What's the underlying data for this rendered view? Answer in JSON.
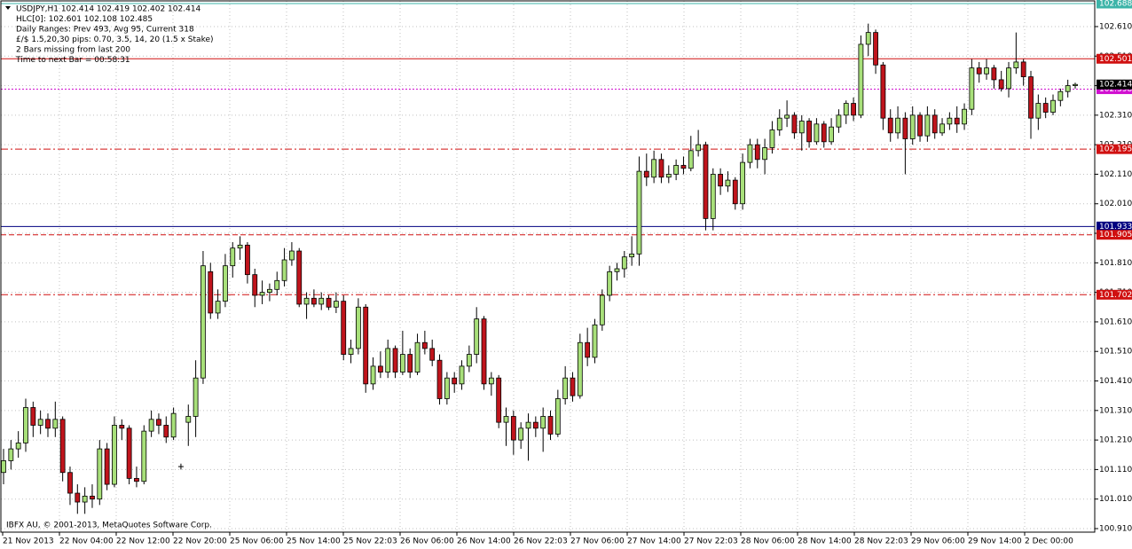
{
  "chart_data": {
    "type": "candlestick",
    "annotations": [
      "USDJPY,H1  102.414 102.419 102.402 102.414",
      "HLC[0]: 102.601 102.108 102.485",
      "Daily Ranges:  Prev 493,  Avg 95,  Current 318",
      "£/$ 1.5,20,30 pips: 0.70, 3.5, 14, 20 (1.5 x Stake)",
      "2 Bars missing from last 200",
      "Time to next Bar = 00:58:31"
    ],
    "footer": "IBFX AU, © 2001-2013, MetaQuotes Software Corp.",
    "x_labels": [
      "21 Nov 2013",
      "22 Nov 04:00",
      "22 Nov 12:00",
      "22 Nov 20:00",
      "25 Nov 06:00",
      "25 Nov 14:00",
      "25 Nov 22:03",
      "26 Nov 06:00",
      "26 Nov 14:00",
      "26 Nov 22:03",
      "27 Nov 06:00",
      "27 Nov 14:00",
      "27 Nov 22:03",
      "28 Nov 06:00",
      "28 Nov 14:00",
      "28 Nov 22:03",
      "29 Nov 06:00",
      "29 Nov 14:00",
      "2 Dec 00:00"
    ],
    "ylim": [
      100.898,
      102.697
    ],
    "yticks": [
      {
        "value": 102.61,
        "label": "102.610"
      },
      {
        "value": 102.51,
        "label": "102.510"
      },
      {
        "value": 102.41,
        "label": "102.410"
      },
      {
        "value": 102.31,
        "label": "102.310"
      },
      {
        "value": 102.21,
        "label": "102.210"
      },
      {
        "value": 102.11,
        "label": "102.110"
      },
      {
        "value": 102.01,
        "label": "102.010"
      },
      {
        "value": 101.91,
        "label": "101.910"
      },
      {
        "value": 101.81,
        "label": "101.810"
      },
      {
        "value": 101.71,
        "label": "101.710"
      },
      {
        "value": 101.61,
        "label": "101.610"
      },
      {
        "value": 101.51,
        "label": "101.510"
      },
      {
        "value": 101.41,
        "label": "101.410"
      },
      {
        "value": 101.31,
        "label": "101.310"
      },
      {
        "value": 101.21,
        "label": "101.210"
      },
      {
        "value": 101.11,
        "label": "101.110"
      },
      {
        "value": 101.01,
        "label": "101.010"
      },
      {
        "value": 100.91,
        "label": "100.910"
      }
    ],
    "grid": true,
    "up_color": "#a8e07a",
    "down_color": "#c0141c",
    "levels": [
      {
        "value": 102.688,
        "color": "#3cb4a8",
        "style": "solid"
      },
      {
        "value": 102.501,
        "color": "#d01010",
        "style": "solid"
      },
      {
        "value": 102.398,
        "color": "#d010d0",
        "style": "dotted"
      },
      {
        "value": 102.414,
        "color": "#000000",
        "style": "none"
      },
      {
        "value": 102.195,
        "color": "#d01010",
        "style": "dashdot"
      },
      {
        "value": 101.933,
        "color": "#000080",
        "style": "solid"
      },
      {
        "value": 101.905,
        "color": "#d01010",
        "style": "dashed"
      },
      {
        "value": 101.702,
        "color": "#d01010",
        "style": "dashdot"
      }
    ],
    "candles": [
      [
        101.1,
        101.18,
        101.06,
        101.14
      ],
      [
        101.14,
        101.21,
        101.11,
        101.18
      ],
      [
        101.18,
        101.24,
        101.15,
        101.2
      ],
      [
        101.2,
        101.35,
        101.17,
        101.32
      ],
      [
        101.32,
        101.34,
        101.22,
        101.26
      ],
      [
        101.26,
        101.31,
        101.23,
        101.28
      ],
      [
        101.28,
        101.3,
        101.22,
        101.25
      ],
      [
        101.25,
        101.34,
        101.22,
        101.28
      ],
      [
        101.28,
        101.29,
        101.07,
        101.1
      ],
      [
        101.1,
        101.12,
        100.99,
        101.03
      ],
      [
        101.03,
        101.06,
        100.96,
        101.0
      ],
      [
        101.0,
        101.05,
        100.96,
        101.02
      ],
      [
        101.02,
        101.06,
        100.98,
        101.01
      ],
      [
        101.01,
        101.21,
        100.99,
        101.18
      ],
      [
        101.18,
        101.2,
        101.04,
        101.06
      ],
      [
        101.06,
        101.29,
        101.05,
        101.26
      ],
      [
        101.26,
        101.28,
        101.21,
        101.25
      ],
      [
        101.25,
        101.26,
        101.06,
        101.08
      ],
      [
        101.08,
        101.12,
        101.05,
        101.07
      ],
      [
        101.07,
        101.26,
        101.06,
        101.24
      ],
      [
        101.24,
        101.31,
        101.22,
        101.28
      ],
      [
        101.28,
        101.3,
        101.23,
        101.26
      ],
      [
        101.26,
        101.29,
        101.2,
        101.22
      ],
      [
        101.22,
        101.32,
        101.21,
        101.3
      ],
      [
        101.12,
        101.13,
        101.11,
        101.12
      ],
      [
        101.27,
        101.33,
        101.19,
        101.29
      ],
      [
        101.29,
        101.48,
        101.22,
        101.42
      ],
      [
        101.42,
        101.85,
        101.4,
        101.8
      ],
      [
        101.78,
        101.81,
        101.62,
        101.64
      ],
      [
        101.64,
        101.72,
        101.62,
        101.68
      ],
      [
        101.68,
        101.84,
        101.66,
        101.8
      ],
      [
        101.8,
        101.88,
        101.76,
        101.86
      ],
      [
        101.86,
        101.9,
        101.82,
        101.87
      ],
      [
        101.87,
        101.88,
        101.74,
        101.77
      ],
      [
        101.77,
        101.79,
        101.66,
        101.7
      ],
      [
        101.7,
        101.75,
        101.67,
        101.71
      ],
      [
        101.71,
        101.74,
        101.68,
        101.72
      ],
      [
        101.72,
        101.78,
        101.7,
        101.75
      ],
      [
        101.75,
        101.86,
        101.73,
        101.82
      ],
      [
        101.82,
        101.88,
        101.8,
        101.85
      ],
      [
        101.85,
        101.86,
        101.66,
        101.67
      ],
      [
        101.67,
        101.71,
        101.62,
        101.69
      ],
      [
        101.69,
        101.72,
        101.66,
        101.67
      ],
      [
        101.67,
        101.71,
        101.65,
        101.69
      ],
      [
        101.69,
        101.7,
        101.65,
        101.66
      ],
      [
        101.66,
        101.71,
        101.64,
        101.68
      ],
      [
        101.68,
        101.7,
        101.48,
        101.5
      ],
      [
        101.5,
        101.55,
        101.47,
        101.52
      ],
      [
        101.52,
        101.69,
        101.5,
        101.66
      ],
      [
        101.66,
        101.67,
        101.37,
        101.4
      ],
      [
        101.4,
        101.49,
        101.38,
        101.46
      ],
      [
        101.46,
        101.51,
        101.42,
        101.44
      ],
      [
        101.44,
        101.55,
        101.42,
        101.52
      ],
      [
        101.52,
        101.53,
        101.42,
        101.44
      ],
      [
        101.44,
        101.58,
        101.43,
        101.5
      ],
      [
        101.5,
        101.52,
        101.42,
        101.44
      ],
      [
        101.44,
        101.57,
        101.43,
        101.54
      ],
      [
        101.54,
        101.58,
        101.5,
        101.52
      ],
      [
        101.52,
        101.55,
        101.46,
        101.48
      ],
      [
        101.48,
        101.5,
        101.33,
        101.35
      ],
      [
        101.35,
        101.44,
        101.33,
        101.42
      ],
      [
        101.42,
        101.44,
        101.37,
        101.4
      ],
      [
        101.4,
        101.48,
        101.38,
        101.46
      ],
      [
        101.46,
        101.53,
        101.44,
        101.5
      ],
      [
        101.5,
        101.66,
        101.47,
        101.62
      ],
      [
        101.62,
        101.63,
        101.38,
        101.4
      ],
      [
        101.4,
        101.44,
        101.36,
        101.42
      ],
      [
        101.42,
        101.43,
        101.25,
        101.27
      ],
      [
        101.27,
        101.32,
        101.19,
        101.29
      ],
      [
        101.29,
        101.31,
        101.16,
        101.21
      ],
      [
        101.21,
        101.27,
        101.18,
        101.25
      ],
      [
        101.25,
        101.3,
        101.14,
        101.27
      ],
      [
        101.27,
        101.29,
        101.22,
        101.25
      ],
      [
        101.25,
        101.32,
        101.17,
        101.29
      ],
      [
        101.29,
        101.31,
        101.21,
        101.23
      ],
      [
        101.23,
        101.38,
        101.22,
        101.35
      ],
      [
        101.35,
        101.46,
        101.33,
        101.42
      ],
      [
        101.42,
        101.44,
        101.34,
        101.36
      ],
      [
        101.36,
        101.57,
        101.35,
        101.54
      ],
      [
        101.54,
        101.59,
        101.46,
        101.49
      ],
      [
        101.49,
        101.62,
        101.47,
        101.6
      ],
      [
        101.6,
        101.72,
        101.58,
        101.7
      ],
      [
        101.7,
        101.8,
        101.68,
        101.78
      ],
      [
        101.78,
        101.81,
        101.75,
        101.79
      ],
      [
        101.79,
        101.85,
        101.76,
        101.83
      ],
      [
        101.83,
        101.9,
        101.8,
        101.84
      ],
      [
        101.84,
        102.17,
        101.8,
        102.12
      ],
      [
        102.12,
        102.18,
        102.07,
        102.1
      ],
      [
        102.1,
        102.19,
        102.08,
        102.16
      ],
      [
        102.16,
        102.18,
        102.08,
        102.1
      ],
      [
        102.1,
        102.14,
        102.08,
        102.11
      ],
      [
        102.11,
        102.16,
        102.09,
        102.14
      ],
      [
        102.14,
        102.17,
        102.11,
        102.13
      ],
      [
        102.13,
        102.24,
        102.12,
        102.19
      ],
      [
        102.19,
        102.26,
        102.17,
        102.21
      ],
      [
        102.21,
        102.22,
        101.92,
        101.96
      ],
      [
        101.96,
        102.13,
        101.92,
        102.11
      ],
      [
        102.11,
        102.13,
        102.04,
        102.07
      ],
      [
        102.07,
        102.12,
        102.05,
        102.09
      ],
      [
        102.09,
        102.1,
        101.99,
        102.01
      ],
      [
        102.01,
        102.18,
        101.99,
        102.15
      ],
      [
        102.15,
        102.23,
        102.13,
        102.21
      ],
      [
        102.21,
        102.23,
        102.13,
        102.16
      ],
      [
        102.16,
        102.23,
        102.11,
        102.2
      ],
      [
        102.2,
        102.29,
        102.18,
        102.26
      ],
      [
        102.26,
        102.33,
        102.24,
        102.3
      ],
      [
        102.3,
        102.36,
        102.27,
        102.31
      ],
      [
        102.31,
        102.32,
        102.23,
        102.25
      ],
      [
        102.25,
        102.31,
        102.19,
        102.29
      ],
      [
        102.29,
        102.3,
        102.2,
        102.22
      ],
      [
        102.22,
        102.3,
        102.21,
        102.28
      ],
      [
        102.28,
        102.29,
        102.2,
        102.22
      ],
      [
        102.22,
        102.3,
        102.21,
        102.27
      ],
      [
        102.27,
        102.33,
        102.25,
        102.31
      ],
      [
        102.31,
        102.36,
        102.28,
        102.35
      ],
      [
        102.35,
        102.37,
        102.29,
        102.31
      ],
      [
        102.31,
        102.58,
        102.3,
        102.55
      ],
      [
        102.55,
        102.62,
        102.51,
        102.59
      ],
      [
        102.59,
        102.6,
        102.45,
        102.48
      ],
      [
        102.48,
        102.49,
        102.26,
        102.3
      ],
      [
        102.3,
        102.33,
        102.22,
        102.25
      ],
      [
        102.25,
        102.34,
        102.23,
        102.3
      ],
      [
        102.3,
        102.32,
        102.11,
        102.23
      ],
      [
        102.23,
        102.34,
        102.21,
        102.31
      ],
      [
        102.31,
        102.32,
        102.22,
        102.24
      ],
      [
        102.24,
        102.34,
        102.22,
        102.31
      ],
      [
        102.31,
        102.33,
        102.23,
        102.25
      ],
      [
        102.25,
        102.3,
        102.24,
        102.28
      ],
      [
        102.28,
        102.32,
        102.26,
        102.3
      ],
      [
        102.3,
        102.34,
        102.25,
        102.28
      ],
      [
        102.28,
        102.35,
        102.26,
        102.33
      ],
      [
        102.33,
        102.5,
        102.31,
        102.47
      ],
      [
        102.47,
        102.49,
        102.42,
        102.45
      ],
      [
        102.45,
        102.5,
        102.43,
        102.47
      ],
      [
        102.47,
        102.48,
        102.4,
        102.43
      ],
      [
        102.43,
        102.46,
        102.39,
        102.4
      ],
      [
        102.4,
        102.49,
        102.37,
        102.47
      ],
      [
        102.47,
        102.59,
        102.45,
        102.49
      ],
      [
        102.49,
        102.5,
        102.41,
        102.44
      ],
      [
        102.44,
        102.46,
        102.23,
        102.3
      ],
      [
        102.3,
        102.38,
        102.26,
        102.35
      ],
      [
        102.35,
        102.37,
        102.3,
        102.32
      ],
      [
        102.32,
        102.38,
        102.31,
        102.36
      ],
      [
        102.36,
        102.4,
        102.34,
        102.39
      ],
      [
        102.39,
        102.43,
        102.37,
        102.41
      ],
      [
        102.41,
        102.42,
        102.4,
        102.414
      ]
    ]
  }
}
